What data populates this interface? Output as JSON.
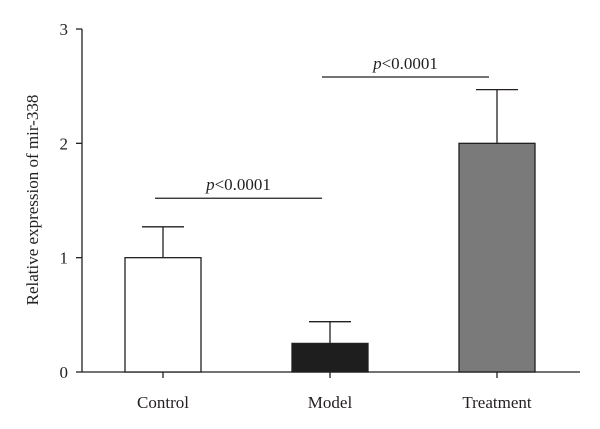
{
  "chart_data": {
    "type": "bar",
    "title": "",
    "xlabel": "",
    "ylabel": "Relative expression of mir-338",
    "categories": [
      "Control",
      "Model",
      "Treatment"
    ],
    "values": [
      1.0,
      0.25,
      2.0
    ],
    "errors": [
      0.27,
      0.19,
      0.47
    ],
    "bar_colors": [
      "#ffffff",
      "#1e1e1e",
      "#7a7a7a"
    ],
    "ylim": [
      0,
      3
    ],
    "yticks": [
      "0",
      "1",
      "2",
      "3"
    ],
    "grid": false,
    "annotations": [
      {
        "italic": "p",
        "rest": "<0.0001",
        "from": 0,
        "to": 1,
        "level": 1.52
      },
      {
        "italic": "p",
        "rest": "<0.0001",
        "from": 1,
        "to": 2,
        "level": 2.58
      }
    ]
  }
}
